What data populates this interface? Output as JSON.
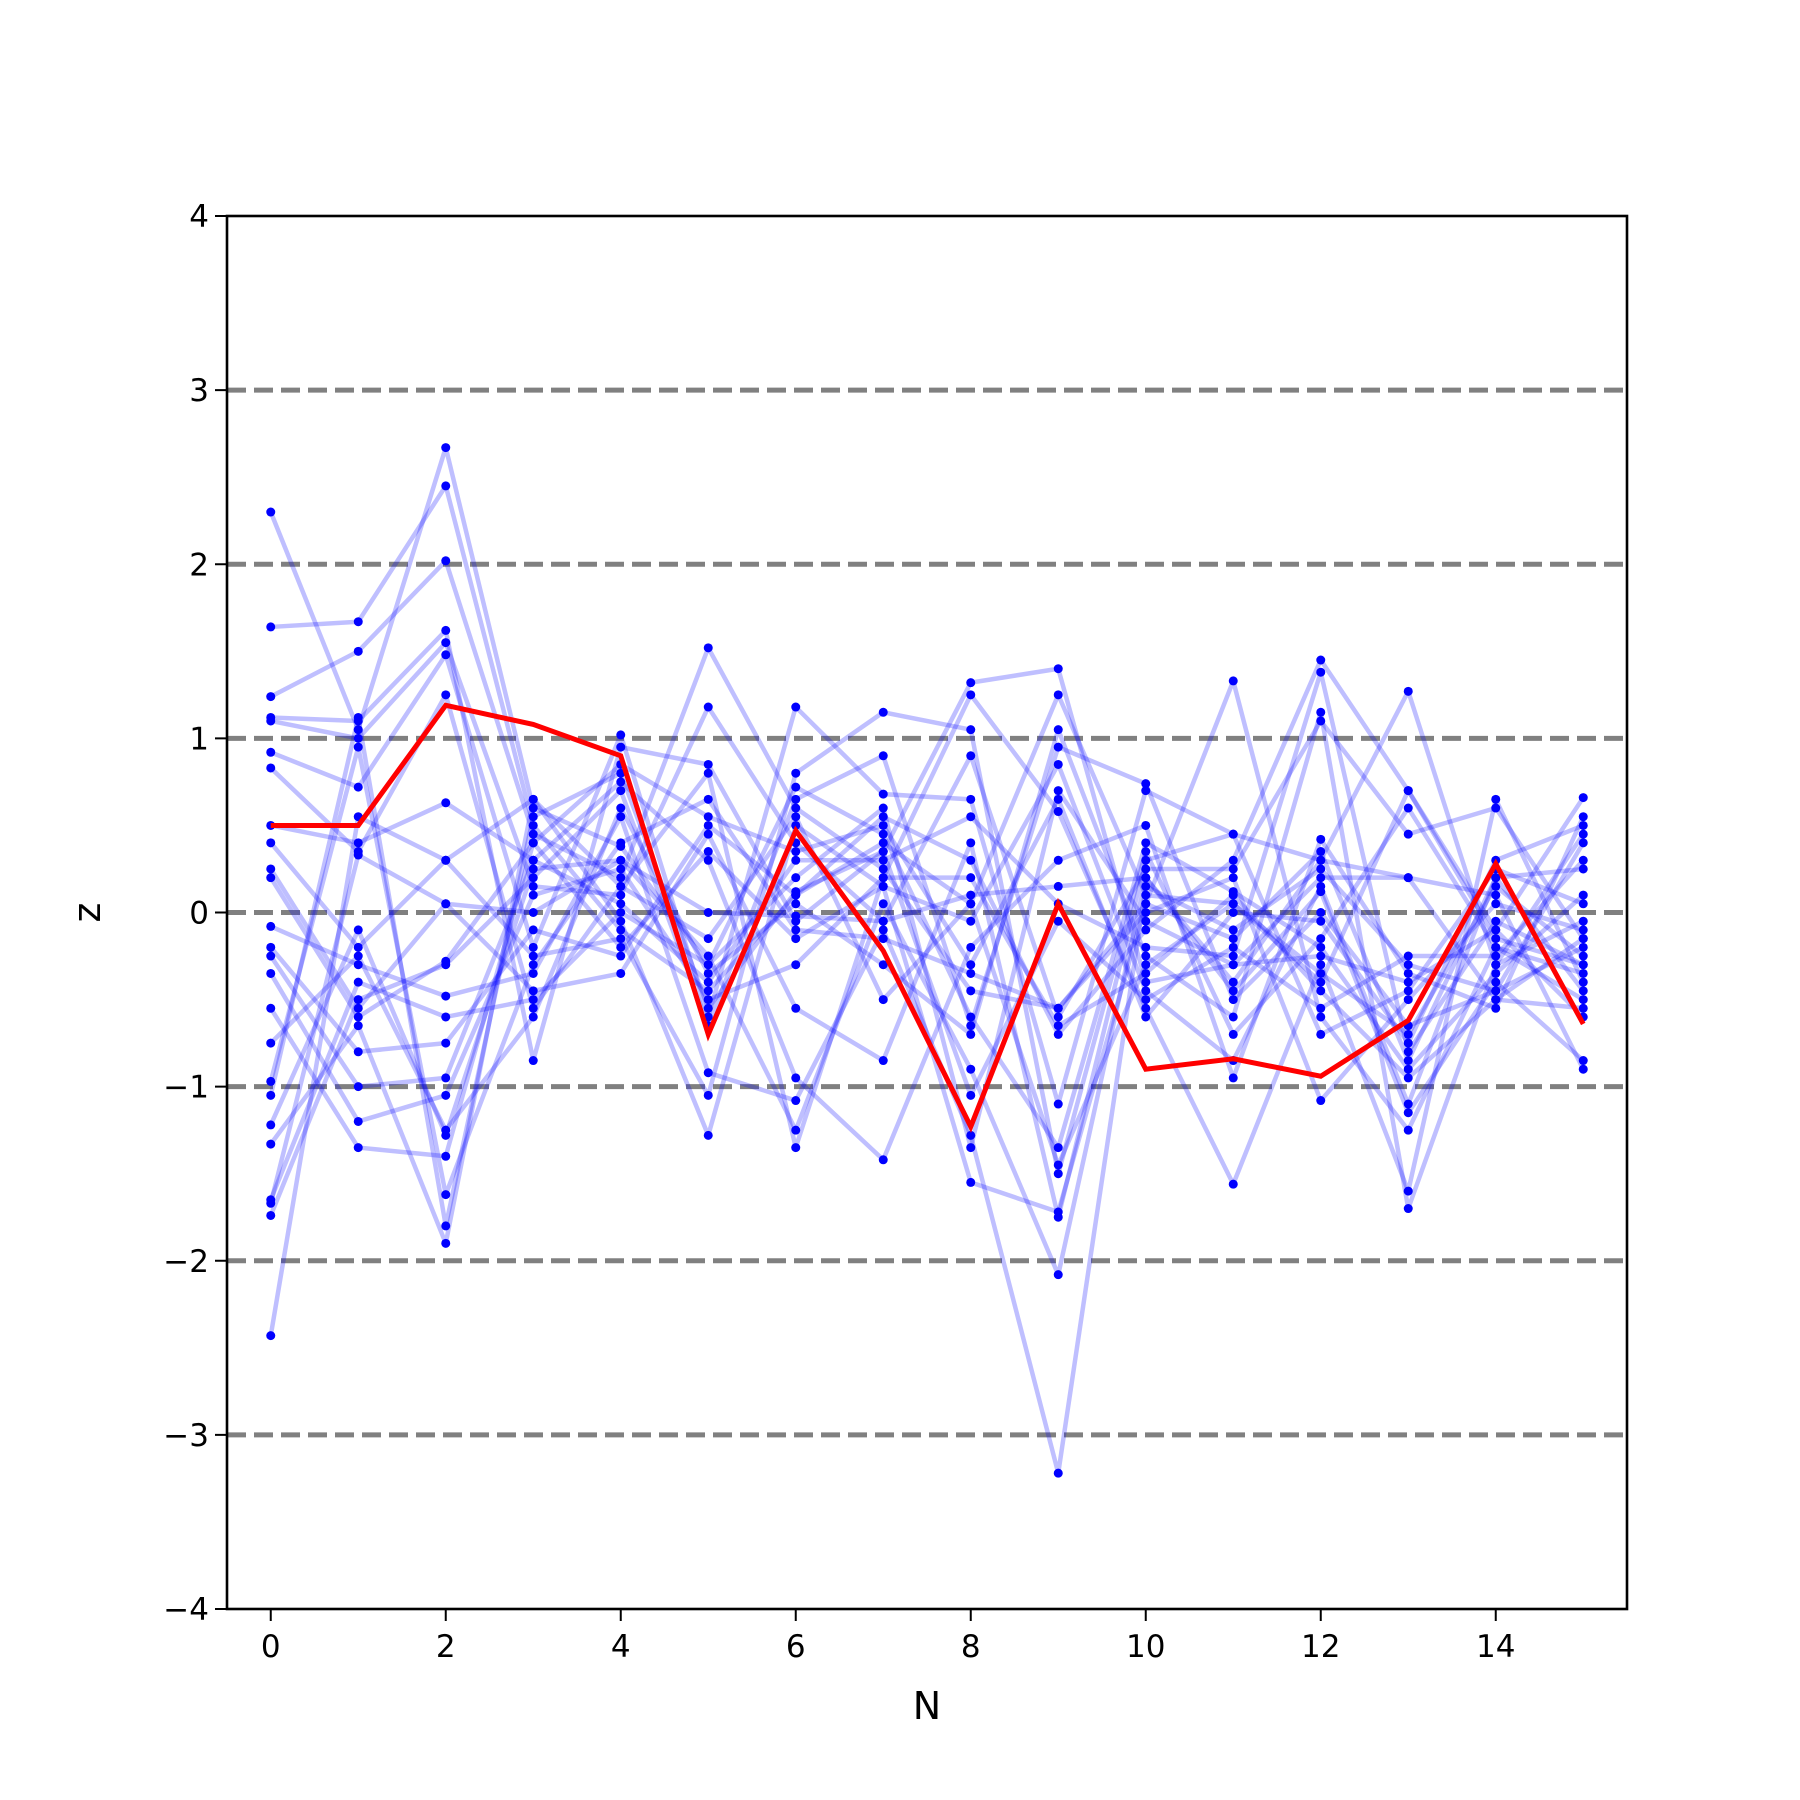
{
  "chart_data": {
    "type": "line",
    "title": "",
    "xlabel": "N",
    "ylabel": "z",
    "xlim": [
      -0.5,
      15.5
    ],
    "ylim": [
      -4,
      4
    ],
    "xticks": [
      0,
      2,
      4,
      6,
      8,
      10,
      12,
      14
    ],
    "xtick_labels": [
      "0",
      "2",
      "4",
      "6",
      "8",
      "10",
      "12",
      "14"
    ],
    "yticks": [
      -4,
      -3,
      -2,
      -1,
      0,
      1,
      2,
      3,
      4
    ],
    "ytick_labels": [
      "−4",
      "−3",
      "−2",
      "−1",
      "0",
      "1",
      "2",
      "3",
      "4"
    ],
    "reference_lines": [
      -3,
      -2,
      -1,
      0,
      1,
      2,
      3
    ],
    "grid": false,
    "colors": {
      "background_series": "#0000ff",
      "highlight_series": "#ff0000",
      "reference_lines": "#808080",
      "axes": "#000000"
    },
    "x": [
      0,
      1,
      2,
      3,
      4,
      5,
      6,
      7,
      8,
      9,
      10,
      11,
      12,
      13,
      14,
      15
    ],
    "highlight": {
      "values": [
        0.5,
        0.5,
        1.19,
        1.08,
        0.9,
        -0.7,
        0.47,
        -0.22,
        -1.23,
        0.05,
        -0.9,
        -0.84,
        -0.94,
        -0.62,
        0.28,
        -0.64
      ]
    },
    "series": [
      {
        "values": [
          2.3,
          1.05,
          2.67,
          0.6,
          0.38,
          -0.3,
          0.72,
          0.45,
          -0.6,
          -1.35,
          0.4,
          0.12,
          -0.2,
          -0.9,
          -0.35,
          0.1
        ]
      },
      {
        "values": [
          1.64,
          1.67,
          2.45,
          0.5,
          -0.1,
          -0.45,
          0.1,
          0.55,
          0.3,
          -0.7,
          -0.1,
          0.3,
          1.45,
          0.7,
          -0.15,
          -0.3
        ]
      },
      {
        "values": [
          1.24,
          1.5,
          2.02,
          0.45,
          0.2,
          1.52,
          0.6,
          0.25,
          -0.45,
          -0.55,
          0.05,
          -0.15,
          0.35,
          -0.85,
          0.2,
          0.25
        ]
      },
      {
        "values": [
          1.12,
          1.1,
          1.62,
          -0.85,
          0.95,
          0.85,
          -0.05,
          0.35,
          1.32,
          1.4,
          -0.4,
          -0.3,
          -0.25,
          -0.4,
          -0.1,
          0.66
        ]
      },
      {
        "values": [
          1.1,
          1.0,
          1.55,
          0.15,
          0.1,
          1.18,
          0.4,
          -0.05,
          0.9,
          -0.6,
          0.25,
          0.25,
          1.1,
          0.45,
          0.6,
          -0.15
        ]
      },
      {
        "values": [
          0.92,
          0.72,
          1.48,
          -0.2,
          1.02,
          -0.6,
          1.18,
          0.68,
          0.65,
          -1.1,
          0.7,
          0.45,
          0.3,
          1.27,
          -0.3,
          -0.05
        ]
      },
      {
        "values": [
          0.83,
          0.35,
          1.25,
          -0.55,
          0.15,
          0.8,
          -1.35,
          0.2,
          1.25,
          0.58,
          -0.55,
          -1.56,
          -0.3,
          -1.6,
          0.65,
          -0.4
        ]
      },
      {
        "values": [
          0.5,
          0.4,
          0.63,
          0.3,
          0.75,
          0.3,
          -0.95,
          -1.42,
          -0.2,
          0.3,
          0.5,
          -0.95,
          0.42,
          -0.35,
          -0.55,
          0.55
        ]
      },
      {
        "values": [
          0.4,
          -0.2,
          0.3,
          0.65,
          -0.05,
          -1.28,
          0.5,
          0.15,
          -1.55,
          -1.72,
          0.05,
          1.33,
          -0.6,
          -1.25,
          -0.2,
          -0.5
        ]
      },
      {
        "values": [
          0.25,
          -0.55,
          0.05,
          0.0,
          0.3,
          -0.25,
          -1.25,
          0.05,
          -0.9,
          -2.08,
          0.2,
          -0.45,
          0.12,
          -1.15,
          -0.4,
          -0.85
        ]
      },
      {
        "values": [
          0.2,
          -0.6,
          -0.28,
          0.4,
          0.85,
          0.55,
          0.35,
          0.5,
          -0.3,
          0.65,
          -0.6,
          0.0,
          -0.05,
          -0.75,
          0.3,
          0.5
        ]
      },
      {
        "values": [
          -0.08,
          -0.3,
          -0.48,
          -0.35,
          0.55,
          -0.92,
          -1.08,
          -0.1,
          -1.28,
          -3.22,
          0.15,
          -0.1,
          0.25,
          -0.3,
          -0.45,
          -0.2
        ]
      },
      {
        "values": [
          -0.2,
          -0.8,
          -0.75,
          -0.1,
          -0.25,
          0.5,
          0.1,
          0.4,
          0.05,
          1.25,
          0.1,
          0.05,
          -0.4,
          0.7,
          -0.1,
          -0.6
        ]
      },
      {
        "values": [
          -0.25,
          -1.0,
          -0.95,
          0.3,
          0.05,
          -0.4,
          0.3,
          0.3,
          0.55,
          0.05,
          -0.2,
          -0.25,
          1.38,
          -0.8,
          -0.05,
          -0.3
        ]
      },
      {
        "values": [
          -0.35,
          -1.2,
          -1.05,
          0.1,
          0.25,
          -0.5,
          -0.3,
          0.2,
          0.2,
          -0.65,
          -0.35,
          0.1,
          -0.45,
          -0.95,
          -0.5,
          -0.15
        ]
      },
      {
        "values": [
          -0.55,
          -1.35,
          -1.4,
          0.4,
          -0.2,
          0.35,
          -0.15,
          0.15,
          -0.05,
          0.85,
          -0.45,
          -0.85,
          0.15,
          -1.1,
          0.2,
          -0.45
        ]
      },
      {
        "values": [
          -0.75,
          -0.25,
          -1.25,
          -0.6,
          0.6,
          -0.35,
          0.05,
          -0.3,
          -0.7,
          1.05,
          -0.25,
          -0.6,
          1.15,
          -1.7,
          -0.3,
          0.45
        ]
      },
      {
        "values": [
          -0.97,
          0.95,
          -1.62,
          -0.3,
          0.4,
          0.65,
          -0.1,
          -0.15,
          -0.35,
          -0.55,
          0.0,
          0.2,
          -1.08,
          -0.5,
          0.05,
          -0.1
        ]
      },
      {
        "values": [
          -1.05,
          1.12,
          -1.8,
          0.55,
          0.8,
          -0.55,
          0.12,
          0.35,
          -1.05,
          -0.05,
          -0.5,
          -0.2,
          -0.55,
          -0.25,
          -0.25,
          0.3
        ]
      },
      {
        "values": [
          -1.22,
          -0.1,
          -1.28,
          0.25,
          0.3,
          0.0,
          -0.02,
          -0.05,
          0.1,
          0.15,
          0.2,
          -0.4,
          0.3,
          0.2,
          -0.5,
          -0.55
        ]
      },
      {
        "values": [
          -1.33,
          -0.65,
          -1.9,
          0.65,
          0.15,
          -0.15,
          0.55,
          -0.5,
          0.05,
          -1.45,
          -0.3,
          0.05,
          -0.35,
          -0.7,
          0.15,
          -0.25
        ]
      },
      {
        "values": [
          -1.65,
          -0.4,
          -0.6,
          -0.5,
          0.0,
          -0.3,
          0.2,
          0.6,
          -1.35,
          0.7,
          -0.05,
          -0.3,
          0.2,
          0.2,
          0.1,
          -0.9
        ]
      },
      {
        "values": [
          -1.67,
          0.33,
          0.05,
          -0.45,
          -0.35,
          0.45,
          -0.55,
          -0.85,
          0.4,
          -1.75,
          0.3,
          0.45,
          -0.7,
          -0.45,
          0.25,
          0.05
        ]
      },
      {
        "values": [
          -1.74,
          -0.5,
          -0.3,
          0.2,
          0.7,
          -0.65,
          0.65,
          0.9,
          -0.65,
          0.95,
          0.74,
          -0.5,
          0.0,
          -0.65,
          -0.45,
          0.4
        ]
      },
      {
        "values": [
          -2.43,
          0.55,
          0.3,
          -0.25,
          -0.15,
          -1.05,
          0.8,
          1.15,
          1.05,
          -1.5,
          0.35,
          -0.7,
          -0.15,
          0.6,
          -0.2,
          -0.35
        ]
      }
    ]
  }
}
